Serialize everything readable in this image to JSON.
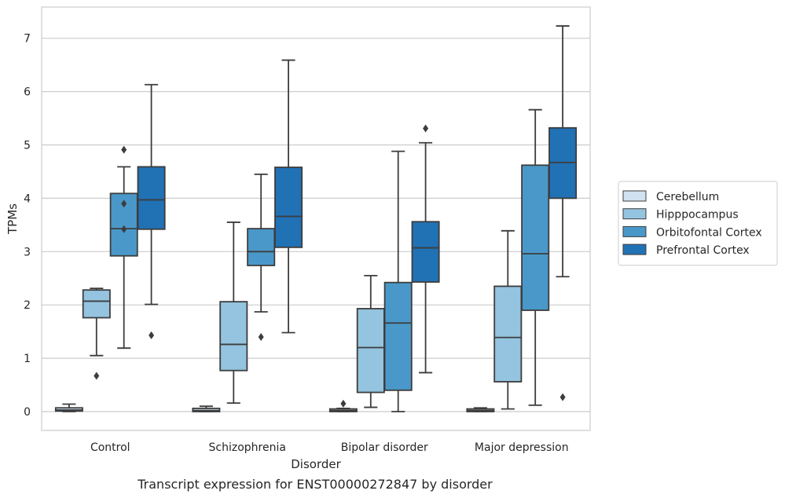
{
  "caption": "Transcript expression for ENST00000272847 by disorder",
  "chart_data": {
    "type": "box",
    "xlabel": "Disorder",
    "ylabel": "TPMs",
    "ylim": [
      -0.35,
      7.6
    ],
    "yticks": [
      0,
      1,
      2,
      3,
      4,
      5,
      6,
      7
    ],
    "categories": [
      "Control",
      "Schizophrenia",
      "Bipolar disorder",
      "Major depression"
    ],
    "grid": "horizontal",
    "legend_position": "right",
    "series": [
      {
        "name": "Cerebellum",
        "color": "#d0e2f2",
        "boxes": [
          {
            "whislo": 0.0,
            "q1": 0.01,
            "med": 0.03,
            "q3": 0.07,
            "whishi": 0.14,
            "fliers": []
          },
          {
            "whislo": 0.0,
            "q1": 0.0,
            "med": 0.02,
            "q3": 0.06,
            "whishi": 0.1,
            "fliers": []
          },
          {
            "whislo": 0.0,
            "q1": 0.0,
            "med": 0.02,
            "q3": 0.05,
            "whishi": 0.06,
            "fliers": [
              0.15
            ]
          },
          {
            "whislo": 0.0,
            "q1": 0.0,
            "med": 0.02,
            "q3": 0.05,
            "whishi": 0.07,
            "fliers": []
          }
        ]
      },
      {
        "name": "Hipppocampus",
        "color": "#94c4df",
        "boxes": [
          {
            "whislo": 1.05,
            "q1": 1.76,
            "med": 2.07,
            "q3": 2.28,
            "whishi": 2.31,
            "fliers": [
              0.67
            ]
          },
          {
            "whislo": 0.16,
            "q1": 0.77,
            "med": 1.26,
            "q3": 2.06,
            "whishi": 3.55,
            "fliers": []
          },
          {
            "whislo": 0.08,
            "q1": 0.36,
            "med": 1.2,
            "q3": 1.93,
            "whishi": 2.55,
            "fliers": []
          },
          {
            "whislo": 0.05,
            "q1": 0.56,
            "med": 1.39,
            "q3": 2.35,
            "whishi": 3.39,
            "fliers": []
          }
        ]
      },
      {
        "name": "Orbitofontal Cortex",
        "color": "#4a98c9",
        "boxes": [
          {
            "whislo": 1.19,
            "q1": 2.92,
            "med": 3.43,
            "q3": 4.09,
            "whishi": 4.59,
            "fliers": [
              3.42,
              3.9,
              4.91
            ]
          },
          {
            "whislo": 1.87,
            "q1": 2.74,
            "med": 3.0,
            "q3": 3.43,
            "whishi": 4.45,
            "fliers": [
              1.4
            ]
          },
          {
            "whislo": 0.0,
            "q1": 0.4,
            "med": 1.66,
            "q3": 2.42,
            "whishi": 4.88,
            "fliers": []
          },
          {
            "whislo": 0.12,
            "q1": 1.9,
            "med": 2.96,
            "q3": 4.62,
            "whishi": 5.66,
            "fliers": []
          }
        ]
      },
      {
        "name": "Prefrontal Cortex",
        "color": "#2171b5",
        "boxes": [
          {
            "whislo": 2.01,
            "q1": 3.42,
            "med": 3.97,
            "q3": 4.59,
            "whishi": 6.13,
            "fliers": [
              1.43
            ]
          },
          {
            "whislo": 1.48,
            "q1": 3.08,
            "med": 3.66,
            "q3": 4.58,
            "whishi": 6.59,
            "fliers": []
          },
          {
            "whislo": 0.73,
            "q1": 2.43,
            "med": 3.07,
            "q3": 3.56,
            "whishi": 5.04,
            "fliers": [
              5.31
            ]
          },
          {
            "whislo": 2.53,
            "q1": 4.0,
            "med": 4.67,
            "q3": 5.32,
            "whishi": 7.23,
            "fliers": [
              0.27
            ]
          }
        ]
      }
    ]
  }
}
